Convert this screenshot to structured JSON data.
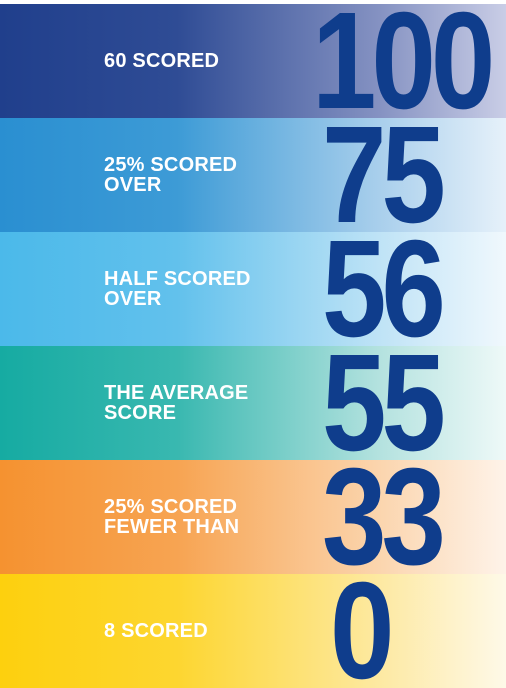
{
  "rows": [
    {
      "label": [
        "60 SCORED"
      ],
      "value": 100
    },
    {
      "label": [
        "25% SCORED",
        "OVER"
      ],
      "value": 75
    },
    {
      "label": [
        "HALF SCORED",
        "OVER"
      ],
      "value": 56
    },
    {
      "label": [
        "THE AVERAGE",
        "SCORE"
      ],
      "value": 55
    },
    {
      "label": [
        "25% SCORED",
        "FEWER THAN"
      ],
      "value": 33
    },
    {
      "label": [
        "8 SCORED"
      ],
      "value": 0
    }
  ]
}
